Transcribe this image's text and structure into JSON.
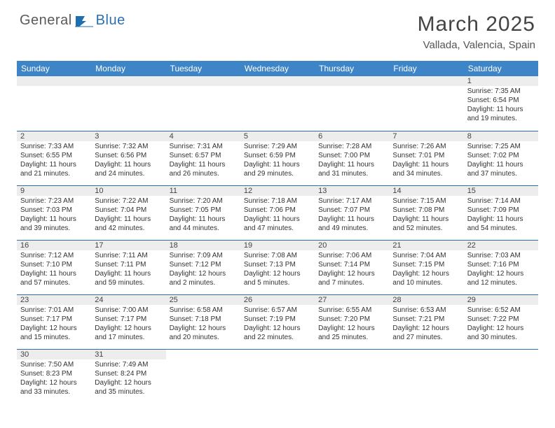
{
  "logo": {
    "t1": "General",
    "t2": "Blue"
  },
  "title": "March 2025",
  "location": "Vallada, Valencia, Spain",
  "colors": {
    "header_bg": "#3d85c6",
    "header_fg": "#ffffff",
    "rule": "#2b6fb0",
    "daynum_bg": "#ededed",
    "logo_gray": "#5a5a5a",
    "logo_blue": "#2b6fb0"
  },
  "dayNames": [
    "Sunday",
    "Monday",
    "Tuesday",
    "Wednesday",
    "Thursday",
    "Friday",
    "Saturday"
  ],
  "weeks": [
    [
      null,
      null,
      null,
      null,
      null,
      null,
      {
        "n": "1",
        "sr": "Sunrise: 7:35 AM",
        "ss": "Sunset: 6:54 PM",
        "dl": "Daylight: 11 hours and 19 minutes."
      }
    ],
    [
      {
        "n": "2",
        "sr": "Sunrise: 7:33 AM",
        "ss": "Sunset: 6:55 PM",
        "dl": "Daylight: 11 hours and 21 minutes."
      },
      {
        "n": "3",
        "sr": "Sunrise: 7:32 AM",
        "ss": "Sunset: 6:56 PM",
        "dl": "Daylight: 11 hours and 24 minutes."
      },
      {
        "n": "4",
        "sr": "Sunrise: 7:31 AM",
        "ss": "Sunset: 6:57 PM",
        "dl": "Daylight: 11 hours and 26 minutes."
      },
      {
        "n": "5",
        "sr": "Sunrise: 7:29 AM",
        "ss": "Sunset: 6:59 PM",
        "dl": "Daylight: 11 hours and 29 minutes."
      },
      {
        "n": "6",
        "sr": "Sunrise: 7:28 AM",
        "ss": "Sunset: 7:00 PM",
        "dl": "Daylight: 11 hours and 31 minutes."
      },
      {
        "n": "7",
        "sr": "Sunrise: 7:26 AM",
        "ss": "Sunset: 7:01 PM",
        "dl": "Daylight: 11 hours and 34 minutes."
      },
      {
        "n": "8",
        "sr": "Sunrise: 7:25 AM",
        "ss": "Sunset: 7:02 PM",
        "dl": "Daylight: 11 hours and 37 minutes."
      }
    ],
    [
      {
        "n": "9",
        "sr": "Sunrise: 7:23 AM",
        "ss": "Sunset: 7:03 PM",
        "dl": "Daylight: 11 hours and 39 minutes."
      },
      {
        "n": "10",
        "sr": "Sunrise: 7:22 AM",
        "ss": "Sunset: 7:04 PM",
        "dl": "Daylight: 11 hours and 42 minutes."
      },
      {
        "n": "11",
        "sr": "Sunrise: 7:20 AM",
        "ss": "Sunset: 7:05 PM",
        "dl": "Daylight: 11 hours and 44 minutes."
      },
      {
        "n": "12",
        "sr": "Sunrise: 7:18 AM",
        "ss": "Sunset: 7:06 PM",
        "dl": "Daylight: 11 hours and 47 minutes."
      },
      {
        "n": "13",
        "sr": "Sunrise: 7:17 AM",
        "ss": "Sunset: 7:07 PM",
        "dl": "Daylight: 11 hours and 49 minutes."
      },
      {
        "n": "14",
        "sr": "Sunrise: 7:15 AM",
        "ss": "Sunset: 7:08 PM",
        "dl": "Daylight: 11 hours and 52 minutes."
      },
      {
        "n": "15",
        "sr": "Sunrise: 7:14 AM",
        "ss": "Sunset: 7:09 PM",
        "dl": "Daylight: 11 hours and 54 minutes."
      }
    ],
    [
      {
        "n": "16",
        "sr": "Sunrise: 7:12 AM",
        "ss": "Sunset: 7:10 PM",
        "dl": "Daylight: 11 hours and 57 minutes."
      },
      {
        "n": "17",
        "sr": "Sunrise: 7:11 AM",
        "ss": "Sunset: 7:11 PM",
        "dl": "Daylight: 11 hours and 59 minutes."
      },
      {
        "n": "18",
        "sr": "Sunrise: 7:09 AM",
        "ss": "Sunset: 7:12 PM",
        "dl": "Daylight: 12 hours and 2 minutes."
      },
      {
        "n": "19",
        "sr": "Sunrise: 7:08 AM",
        "ss": "Sunset: 7:13 PM",
        "dl": "Daylight: 12 hours and 5 minutes."
      },
      {
        "n": "20",
        "sr": "Sunrise: 7:06 AM",
        "ss": "Sunset: 7:14 PM",
        "dl": "Daylight: 12 hours and 7 minutes."
      },
      {
        "n": "21",
        "sr": "Sunrise: 7:04 AM",
        "ss": "Sunset: 7:15 PM",
        "dl": "Daylight: 12 hours and 10 minutes."
      },
      {
        "n": "22",
        "sr": "Sunrise: 7:03 AM",
        "ss": "Sunset: 7:16 PM",
        "dl": "Daylight: 12 hours and 12 minutes."
      }
    ],
    [
      {
        "n": "23",
        "sr": "Sunrise: 7:01 AM",
        "ss": "Sunset: 7:17 PM",
        "dl": "Daylight: 12 hours and 15 minutes."
      },
      {
        "n": "24",
        "sr": "Sunrise: 7:00 AM",
        "ss": "Sunset: 7:17 PM",
        "dl": "Daylight: 12 hours and 17 minutes."
      },
      {
        "n": "25",
        "sr": "Sunrise: 6:58 AM",
        "ss": "Sunset: 7:18 PM",
        "dl": "Daylight: 12 hours and 20 minutes."
      },
      {
        "n": "26",
        "sr": "Sunrise: 6:57 AM",
        "ss": "Sunset: 7:19 PM",
        "dl": "Daylight: 12 hours and 22 minutes."
      },
      {
        "n": "27",
        "sr": "Sunrise: 6:55 AM",
        "ss": "Sunset: 7:20 PM",
        "dl": "Daylight: 12 hours and 25 minutes."
      },
      {
        "n": "28",
        "sr": "Sunrise: 6:53 AM",
        "ss": "Sunset: 7:21 PM",
        "dl": "Daylight: 12 hours and 27 minutes."
      },
      {
        "n": "29",
        "sr": "Sunrise: 6:52 AM",
        "ss": "Sunset: 7:22 PM",
        "dl": "Daylight: 12 hours and 30 minutes."
      }
    ],
    [
      {
        "n": "30",
        "sr": "Sunrise: 7:50 AM",
        "ss": "Sunset: 8:23 PM",
        "dl": "Daylight: 12 hours and 33 minutes."
      },
      {
        "n": "31",
        "sr": "Sunrise: 7:49 AM",
        "ss": "Sunset: 8:24 PM",
        "dl": "Daylight: 12 hours and 35 minutes."
      },
      null,
      null,
      null,
      null,
      null
    ]
  ]
}
